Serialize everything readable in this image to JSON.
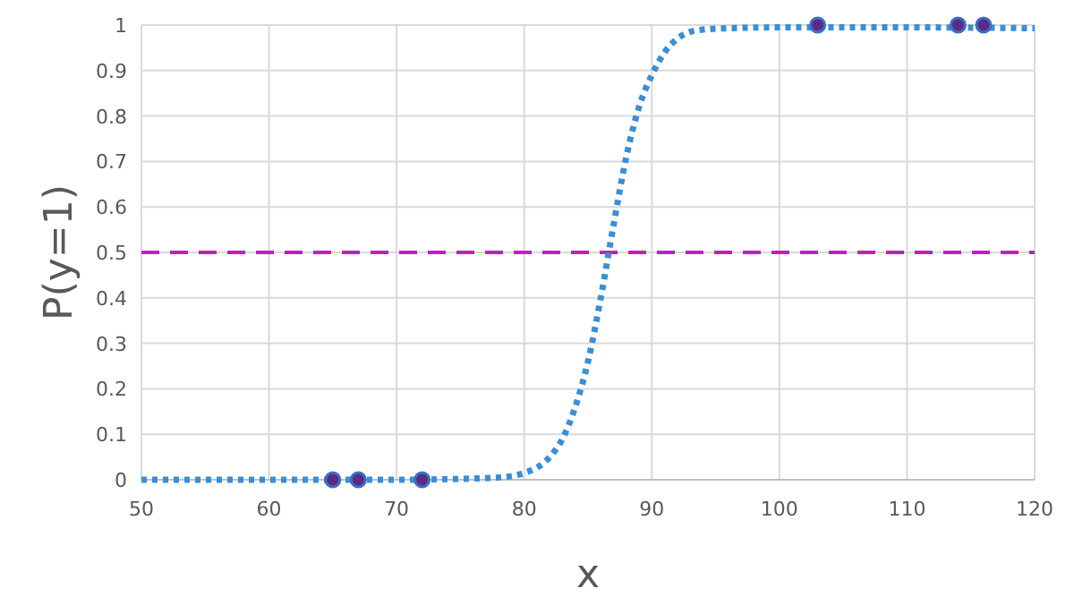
{
  "chart_data": {
    "type": "line",
    "xlabel": "x",
    "ylabel": "P(y=1)",
    "xlim": [
      50,
      120
    ],
    "ylim": [
      0,
      1
    ],
    "xticks": [
      50,
      60,
      70,
      80,
      90,
      100,
      110,
      120
    ],
    "yticks": [
      0,
      0.1,
      0.2,
      0.3,
      0.4,
      0.5,
      0.6,
      0.7,
      0.8,
      0.9,
      1
    ],
    "grid": true,
    "series": [
      {
        "color": "#3a8fd4",
        "line_style": "dotted",
        "marker": "none",
        "x": [
          50,
          60,
          70,
          75,
          78,
          80,
          82,
          83,
          84,
          85,
          86,
          87,
          88,
          89,
          90,
          91,
          92,
          93,
          94,
          96,
          100,
          110,
          120
        ],
        "values": [
          0,
          0,
          0,
          0.002,
          0.005,
          0.015,
          0.05,
          0.09,
          0.16,
          0.26,
          0.4,
          0.56,
          0.71,
          0.82,
          0.89,
          0.94,
          0.97,
          0.985,
          0.99,
          0.993,
          0.995,
          0.995,
          0.993
        ]
      },
      {
        "type": "scatter",
        "color": "#5b2a86",
        "marker": "circle",
        "x": [
          65,
          67,
          72,
          103,
          114,
          116
        ],
        "values": [
          0,
          0,
          0,
          1,
          1,
          1
        ]
      }
    ],
    "ref_lines": [
      {
        "axis": "y",
        "value": 0.5,
        "color": "#c020c0",
        "line_style": "dashed"
      }
    ]
  }
}
